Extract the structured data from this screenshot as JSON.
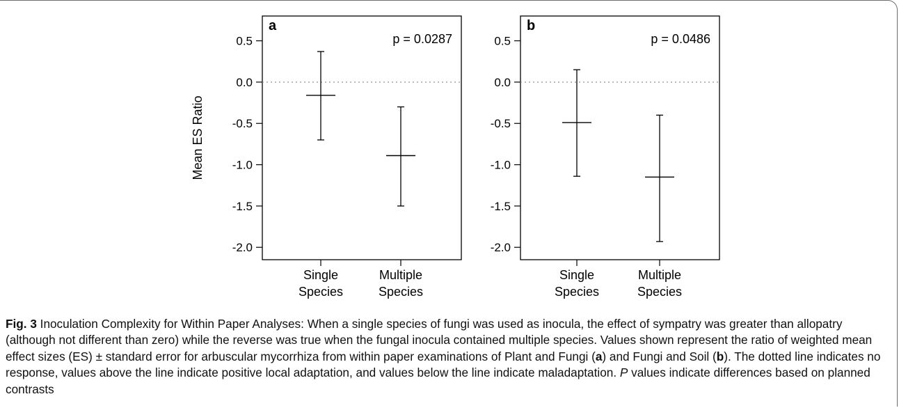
{
  "chart_data": [
    {
      "type": "errorbar",
      "panel_label": "a",
      "annotation": "p = 0.0287",
      "ylabel": "Mean ES Ratio",
      "ylim": [
        -2.15,
        0.8
      ],
      "yticks": [
        "0.5",
        "0.0",
        "-0.5",
        "-1.0",
        "-1.5",
        "-2.0"
      ],
      "ytick_values": [
        0.5,
        0.0,
        -0.5,
        -1.0,
        -1.5,
        -2.0
      ],
      "reference_line": 0.0,
      "categories": [
        [
          "Single",
          "Species"
        ],
        [
          "Multiple",
          "Species"
        ]
      ],
      "mean": [
        -0.16,
        -0.89
      ],
      "lower": [
        -0.7,
        -1.5
      ],
      "upper": [
        0.37,
        -0.3
      ]
    },
    {
      "type": "errorbar",
      "panel_label": "b",
      "annotation": "p = 0.0486",
      "ylabel": "",
      "ylim": [
        -2.15,
        0.8
      ],
      "yticks": [
        "0.5",
        "0.0",
        "-0.5",
        "-1.0",
        "-1.5",
        "-2.0"
      ],
      "ytick_values": [
        0.5,
        0.0,
        -0.5,
        -1.0,
        -1.5,
        -2.0
      ],
      "reference_line": 0.0,
      "categories": [
        [
          "Single",
          "Species"
        ],
        [
          "Multiple",
          "Species"
        ]
      ],
      "mean": [
        -0.49,
        -1.15
      ],
      "lower": [
        -1.14,
        -1.93
      ],
      "upper": [
        0.15,
        -0.4
      ]
    }
  ],
  "caption": {
    "runs": [
      {
        "text": "Fig. 3",
        "style": "lbl"
      },
      {
        "text": " Inoculation Complexity for Within Paper Analyses: When a single species of fungi was used as inocula, the effect of sympatry was greater than allopatry (although not different than zero) while the reverse was true when the fungal inocula contained multiple species. Values shown represent the ratio of weighted mean effect sizes (ES) ± standard error for arbuscular mycorrhiza from within paper examinations of Plant and Fungi (",
        "style": ""
      },
      {
        "text": "a",
        "style": "b"
      },
      {
        "text": ") and Fungi and Soil (",
        "style": ""
      },
      {
        "text": "b",
        "style": "b"
      },
      {
        "text": "). The dotted line indicates no response, values above the line indicate positive local adaptation, and values below the line indicate maladaptation. ",
        "style": ""
      },
      {
        "text": "P",
        "style": "i"
      },
      {
        "text": " values indicate differences based on planned contrasts",
        "style": ""
      }
    ]
  },
  "colors": {
    "ink": "#000000",
    "reference_line": "#9a9a9a",
    "frame": "#6b6b6b"
  }
}
